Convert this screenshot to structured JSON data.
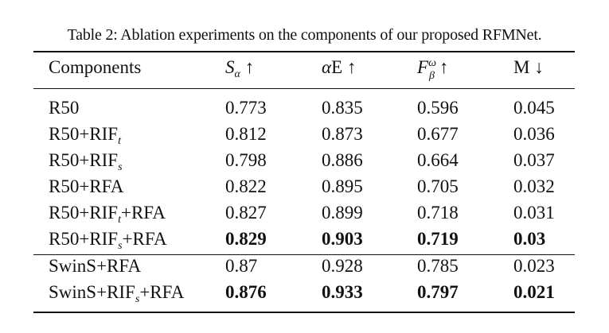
{
  "caption": "Table 2: Ablation experiments on the components of our proposed RFMNet.",
  "headers": {
    "components": "Components",
    "s_letter": "S",
    "s_sub": "α",
    "s_arrow": "↑",
    "e_alpha": "α",
    "e_letter": "E",
    "e_arrow": "↑",
    "f_letter": "F",
    "f_sup": "ω",
    "f_sub": "β",
    "f_arrow": "↑",
    "m_letter": "M",
    "m_arrow": "↓"
  },
  "rows": [
    {
      "base": "R50",
      "sub": "",
      "rest": "",
      "s": "0.773",
      "e": "0.835",
      "f": "0.596",
      "m": "0.045",
      "bold": false
    },
    {
      "base": "R50+RIF",
      "sub": "t",
      "rest": "",
      "s": "0.812",
      "e": "0.873",
      "f": "0.677",
      "m": "0.036",
      "bold": false
    },
    {
      "base": "R50+RIF",
      "sub": "s",
      "rest": "",
      "s": "0.798",
      "e": "0.886",
      "f": "0.664",
      "m": "0.037",
      "bold": false
    },
    {
      "base": "R50+RFA",
      "sub": "",
      "rest": "",
      "s": "0.822",
      "e": "0.895",
      "f": "0.705",
      "m": "0.032",
      "bold": false
    },
    {
      "base": "R50+RIF",
      "sub": "t",
      "rest": "+RFA",
      "s": "0.827",
      "e": "0.899",
      "f": "0.718",
      "m": "0.031",
      "bold": false
    },
    {
      "base": "R50+RIF",
      "sub": "s",
      "rest": "+RFA",
      "s": "0.829",
      "e": "0.903",
      "f": "0.719",
      "m": "0.03",
      "bold": true
    },
    {
      "base": "SwinS+RFA",
      "sub": "",
      "rest": "",
      "s": "0.87",
      "e": "0.928",
      "f": "0.785",
      "m": "0.023",
      "bold": false
    },
    {
      "base": "SwinS+RIF",
      "sub": "s",
      "rest": "+RFA",
      "s": "0.876",
      "e": "0.933",
      "f": "0.797",
      "m": "0.021",
      "bold": true
    }
  ]
}
